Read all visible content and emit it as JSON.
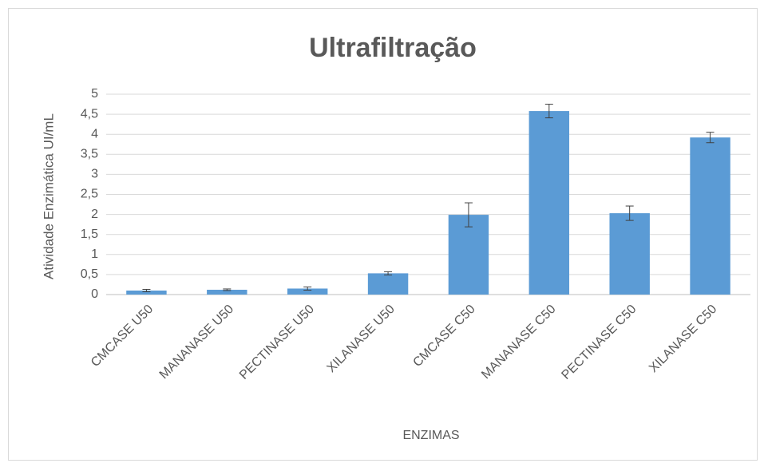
{
  "chart_data": {
    "type": "bar",
    "title": "Ultrafiltração",
    "x_label": "ENZIMAS",
    "y_label": "Atividade Enzimática UI/mL",
    "categories": [
      "CMCASE U50",
      "MANANASE U50",
      "PECTINASE U50",
      "XILANASE U50",
      "CMCASE C50",
      "MANANASE C50",
      "PECTINASE C50",
      "XILANASE C50"
    ],
    "values": [
      0.1,
      0.12,
      0.15,
      0.53,
      1.99,
      4.58,
      2.03,
      3.92
    ],
    "errors": [
      0.03,
      0.02,
      0.04,
      0.04,
      0.3,
      0.17,
      0.18,
      0.13
    ],
    "color": "#5b9bd5",
    "ylim": [
      0,
      5
    ],
    "yticks": [
      0,
      {
        "value": 0.5,
        "label": "0,5"
      },
      1,
      {
        "value": 1.5,
        "label": "1,5"
      },
      2,
      {
        "value": 2.5,
        "label": "2,5"
      },
      3,
      {
        "value": 3.5,
        "label": "3,5"
      },
      4,
      {
        "value": 4.5,
        "label": "4,5"
      },
      5
    ],
    "grid": true
  }
}
